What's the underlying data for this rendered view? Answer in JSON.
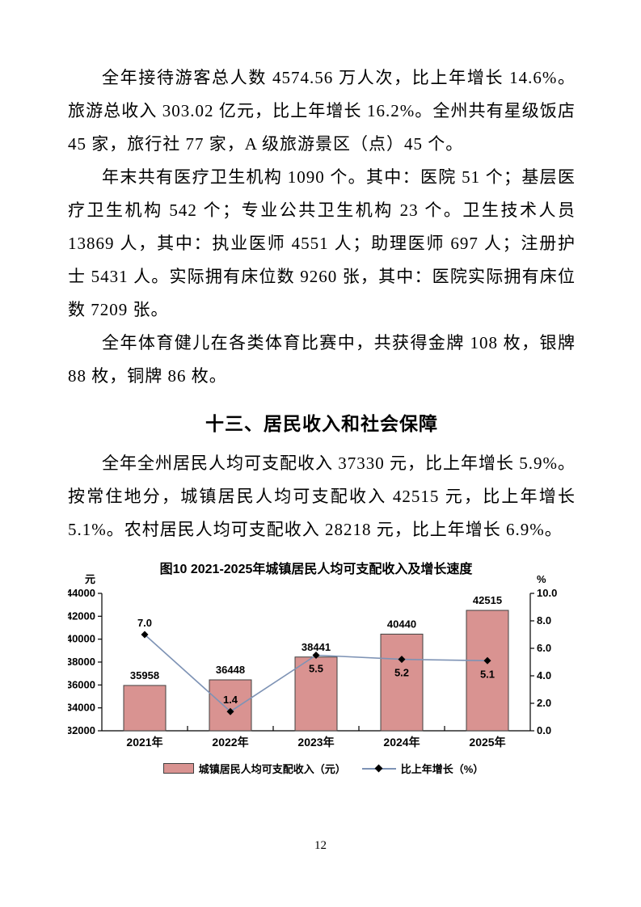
{
  "page": {
    "number": "12"
  },
  "body": {
    "paragraphs": [
      "全年接待游客总人数 4574.56 万人次，比上年增长 14.6%。旅游总收入 303.02 亿元，比上年增长 16.2%。全州共有星级饭店 45 家，旅行社 77 家，A 级旅游景区（点）45 个。",
      "年末共有医疗卫生机构 1090 个。其中：医院 51 个；基层医疗卫生机构 542 个；专业公共卫生机构 23 个。卫生技术人员 13869 人，其中：执业医师 4551 人；助理医师 697 人；注册护士 5431 人。实际拥有床位数 9260 张，其中：医院实际拥有床位数 7209 张。",
      "全年体育健儿在各类体育比赛中，共获得金牌 108 枚，银牌 88 枚，铜牌 86 枚。"
    ],
    "heading": "十三、居民收入和社会保障",
    "paragraphs_after_heading": [
      "全年全州居民人均可支配收入 37330 元，比上年增长 5.9%。按常住地分，城镇居民人均可支配收入 42515 元，比上年增长 5.1%。农村居民人均可支配收入 28218 元，比上年增长 6.9%。"
    ]
  },
  "chart_data": {
    "type": "bar",
    "title": "图10 2021-2025年城镇居民人均可支配收入及增长速度",
    "categories": [
      "2021年",
      "2022年",
      "2023年",
      "2024年",
      "2025年"
    ],
    "series": [
      {
        "name": "城镇居民人均可支配收入（元）",
        "type": "bar",
        "axis": "left",
        "values": [
          35958,
          36448,
          38441,
          40440,
          42515
        ],
        "labels": [
          "35958",
          "36448",
          "38441",
          "40440",
          "42515"
        ],
        "color": "#d99391",
        "border_color": "#404040"
      },
      {
        "name": "比上年增长（%）",
        "type": "line",
        "axis": "right",
        "values": [
          7.0,
          1.4,
          5.5,
          5.2,
          5.1
        ],
        "labels": [
          "7.0",
          "1.4",
          "5.5",
          "5.2",
          "5.1"
        ],
        "label_positions": [
          "above",
          "above",
          "below",
          "below",
          "below"
        ],
        "color": "#7e93b5",
        "marker": "diamond",
        "marker_color": "#000000"
      }
    ],
    "left_axis": {
      "unit": "元",
      "min": 32000,
      "max": 44000,
      "step": 2000,
      "tick_labels": [
        "32000",
        "34000",
        "36000",
        "38000",
        "40000",
        "42000",
        "44000"
      ]
    },
    "right_axis": {
      "unit": "%",
      "min": 0,
      "max": 10,
      "step": 2,
      "tick_labels": [
        "0.0",
        "2.0",
        "4.0",
        "6.0",
        "8.0",
        "10.0"
      ]
    },
    "legend_position": "bottom",
    "grid": false,
    "axis_color": "#000000"
  }
}
